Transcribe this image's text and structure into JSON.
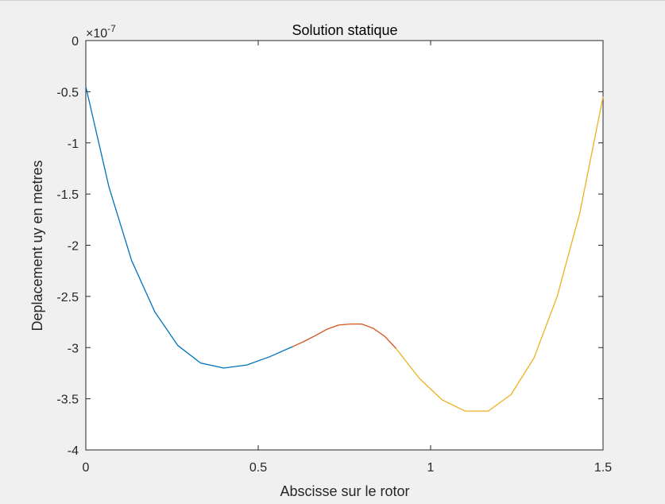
{
  "chart_data": {
    "type": "line",
    "title": "Solution statique",
    "xlabel": "Abscisse sur le rotor",
    "ylabel": "Deplacement uy en metres",
    "exponent_label": {
      "base": "×10",
      "power": "-7"
    },
    "xlim": [
      0,
      1.5
    ],
    "ylim": [
      -4,
      0
    ],
    "y_scale_factor": 1e-07,
    "x_ticks": [
      {
        "value": 0,
        "label": "0"
      },
      {
        "value": 0.5,
        "label": "0.5"
      },
      {
        "value": 1,
        "label": "1"
      },
      {
        "value": 1.5,
        "label": "1.5"
      }
    ],
    "y_ticks": [
      {
        "value": 0,
        "label": "0"
      },
      {
        "value": -0.5,
        "label": "-0.5"
      },
      {
        "value": -1,
        "label": "-1"
      },
      {
        "value": -1.5,
        "label": "-1.5"
      },
      {
        "value": -2,
        "label": "-2"
      },
      {
        "value": -2.5,
        "label": "-2.5"
      },
      {
        "value": -3,
        "label": "-3"
      },
      {
        "value": -3.5,
        "label": "-3.5"
      },
      {
        "value": -4,
        "label": "-4"
      }
    ],
    "grid": false,
    "series": [
      {
        "color": "#0072bd",
        "x": [
          0,
          0.067,
          0.133,
          0.2,
          0.267,
          0.333,
          0.4,
          0.467,
          0.533,
          0.6
        ],
        "y": [
          -0.45,
          -1.43,
          -2.15,
          -2.65,
          -2.98,
          -3.15,
          -3.2,
          -3.17,
          -3.09,
          -2.99
        ]
      },
      {
        "color": "#d95319",
        "x": [
          0.6,
          0.633,
          0.667,
          0.7,
          0.733,
          0.767,
          0.8,
          0.833,
          0.867,
          0.9
        ],
        "y": [
          -2.99,
          -2.94,
          -2.88,
          -2.82,
          -2.78,
          -2.77,
          -2.77,
          -2.81,
          -2.89,
          -3.01
        ]
      },
      {
        "color": "#edb120",
        "x": [
          0.9,
          0.967,
          1.033,
          1.1,
          1.167,
          1.233,
          1.3,
          1.367,
          1.433,
          1.5
        ],
        "y": [
          -3.01,
          -3.3,
          -3.51,
          -3.62,
          -3.62,
          -3.46,
          -3.1,
          -2.5,
          -1.68,
          -0.55
        ]
      }
    ]
  }
}
